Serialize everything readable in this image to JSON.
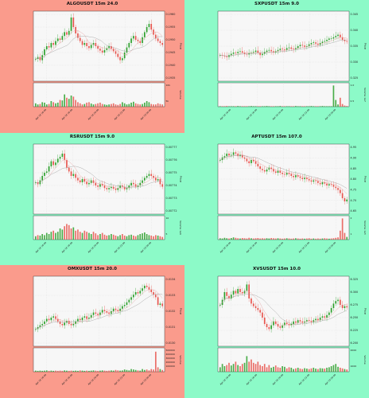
{
  "chart_data": [
    {
      "type": "candlestick",
      "title": "ALGOUSDT 15m 24.0",
      "background": "#fa9b8c",
      "ylabel_price": "Price",
      "ylabel_volume": "Volume",
      "price_ticks": [
        "0.1960",
        "0.1955",
        "0.1950",
        "0.1945",
        "0.1940",
        "0.1935"
      ],
      "volume_ticks": [
        "10k",
        "5k"
      ],
      "x_ticks": [
        "Apr 18 16:00",
        "Apr 18 18:00",
        "Apr 18 20:00",
        "Apr 18 22:00",
        "Apr 19 00:00"
      ],
      "price_shape": [
        0.3,
        0.33,
        0.28,
        0.36,
        0.45,
        0.5,
        0.48,
        0.55,
        0.52,
        0.58,
        0.62,
        0.6,
        0.66,
        0.72,
        0.68,
        0.74,
        0.95,
        0.8,
        0.7,
        0.63,
        0.58,
        0.52,
        0.55,
        0.5,
        0.47,
        0.52,
        0.55,
        0.5,
        0.46,
        0.43,
        0.4,
        0.44,
        0.47,
        0.5,
        0.46,
        0.42,
        0.38,
        0.33,
        0.28,
        0.31,
        0.4,
        0.48,
        0.55,
        0.62,
        0.66,
        0.6,
        0.58,
        0.55,
        0.64,
        0.72,
        0.8,
        0.85,
        0.76,
        0.68,
        0.62,
        0.58,
        0.55,
        0.52
      ],
      "volume_shape": [
        0.15,
        0.1,
        0.12,
        0.2,
        0.18,
        0.1,
        0.12,
        0.25,
        0.2,
        0.15,
        0.18,
        0.3,
        0.28,
        0.55,
        0.4,
        0.35,
        0.5,
        0.45,
        0.3,
        0.2,
        0.15,
        0.1,
        0.12,
        0.18,
        0.2,
        0.14,
        0.1,
        0.12,
        0.15,
        0.18,
        0.12,
        0.1,
        0.08,
        0.1,
        0.12,
        0.15,
        0.1,
        0.08,
        0.12,
        0.2,
        0.15,
        0.1,
        0.12,
        0.18,
        0.22,
        0.15,
        0.12,
        0.1,
        0.12,
        0.18,
        0.25,
        0.2,
        0.12,
        0.1,
        0.1,
        0.15,
        0.12,
        0.1
      ]
    },
    {
      "type": "candlestick",
      "title": "SXPUSDT 15m 9.0",
      "background": "#8cfac8",
      "ylabel_price": "Price",
      "ylabel_volume": "Volume 1e7",
      "price_ticks": [
        "0.345",
        "0.340",
        "0.335",
        "0.330",
        "0.325"
      ],
      "volume_ticks": [
        "1.0",
        "0.5"
      ],
      "x_ticks": [
        "Apr 18 16:00",
        "Apr 18 18:00",
        "Apr 18 20:00",
        "Apr 18 22:00",
        "Apr 19 00:00"
      ],
      "price_shape": [
        0.36,
        0.35,
        0.34,
        0.33,
        0.36,
        0.38,
        0.4,
        0.39,
        0.41,
        0.42,
        0.4,
        0.38,
        0.37,
        0.39,
        0.4,
        0.41,
        0.43,
        0.4,
        0.36,
        0.38,
        0.41,
        0.43,
        0.44,
        0.42,
        0.4,
        0.42,
        0.44,
        0.46,
        0.45,
        0.44,
        0.47,
        0.48,
        0.46,
        0.45,
        0.47,
        0.5,
        0.52,
        0.51,
        0.49,
        0.5,
        0.53,
        0.55,
        0.56,
        0.54,
        0.52,
        0.55,
        0.57,
        0.58,
        0.6,
        0.62,
        0.62,
        0.64,
        0.66,
        0.68,
        0.64,
        0.6,
        0.58,
        0.57
      ],
      "volume_shape": [
        0.02,
        0.02,
        0.02,
        0.03,
        0.02,
        0.02,
        0.02,
        0.02,
        0.03,
        0.02,
        0.02,
        0.02,
        0.02,
        0.02,
        0.03,
        0.02,
        0.02,
        0.02,
        0.02,
        0.02,
        0.02,
        0.03,
        0.02,
        0.02,
        0.02,
        0.02,
        0.02,
        0.03,
        0.02,
        0.02,
        0.02,
        0.02,
        0.02,
        0.02,
        0.03,
        0.02,
        0.02,
        0.02,
        0.02,
        0.02,
        0.02,
        0.03,
        0.02,
        0.02,
        0.02,
        0.02,
        0.03,
        0.02,
        0.02,
        0.02,
        0.02,
        0.95,
        0.3,
        0.1,
        0.4,
        0.12,
        0.05,
        0.03
      ]
    },
    {
      "type": "candlestick",
      "title": "RSRUSDT 15m 9.0",
      "background": "#8cfac8",
      "ylabel_price": "Price",
      "ylabel_volume": "Volume 1e6",
      "price_ticks": [
        "0.00777",
        "0.00776",
        "0.00775",
        "0.00774",
        "0.00773",
        "0.00772"
      ],
      "volume_ticks": [
        "10",
        "5"
      ],
      "x_ticks": [
        "Apr 18 16:00",
        "Apr 18 18:00",
        "Apr 18 20:00",
        "Apr 18 22:00",
        "Apr 19 00:00"
      ],
      "price_shape": [
        0.45,
        0.42,
        0.48,
        0.55,
        0.6,
        0.62,
        0.7,
        0.78,
        0.72,
        0.76,
        0.82,
        0.85,
        0.9,
        0.8,
        0.68,
        0.62,
        0.55,
        0.58,
        0.52,
        0.48,
        0.45,
        0.5,
        0.46,
        0.42,
        0.44,
        0.48,
        0.44,
        0.4,
        0.38,
        0.42,
        0.4,
        0.36,
        0.34,
        0.36,
        0.38,
        0.35,
        0.33,
        0.36,
        0.4,
        0.38,
        0.34,
        0.36,
        0.4,
        0.44,
        0.42,
        0.38,
        0.4,
        0.44,
        0.48,
        0.52,
        0.55,
        0.58,
        0.55,
        0.52,
        0.48,
        0.5,
        0.42,
        0.38
      ],
      "volume_shape": [
        0.15,
        0.2,
        0.18,
        0.25,
        0.2,
        0.3,
        0.25,
        0.35,
        0.4,
        0.3,
        0.35,
        0.5,
        0.45,
        0.6,
        0.7,
        0.65,
        0.5,
        0.55,
        0.4,
        0.45,
        0.35,
        0.3,
        0.4,
        0.35,
        0.3,
        0.25,
        0.35,
        0.28,
        0.2,
        0.25,
        0.3,
        0.22,
        0.18,
        0.2,
        0.25,
        0.22,
        0.18,
        0.15,
        0.2,
        0.25,
        0.18,
        0.15,
        0.2,
        0.22,
        0.18,
        0.15,
        0.2,
        0.25,
        0.28,
        0.32,
        0.25,
        0.2,
        0.18,
        0.15,
        0.2,
        0.18,
        0.15,
        0.12
      ]
    },
    {
      "type": "candlestick",
      "title": "APTUSDT 15m 107.0",
      "background": "#8cfac8",
      "ylabel_price": "Price",
      "ylabel_volume": "Volume 1e5",
      "price_ticks": [
        "4.95",
        "4.90",
        "4.85",
        "4.80",
        "4.75",
        "4.70",
        "4.65"
      ],
      "volume_ticks": [
        "2",
        "1"
      ],
      "x_ticks": [
        "Apr 18 16:00",
        "Apr 18 18:00",
        "Apr 18 20:00",
        "Apr 18 22:00",
        "Apr 19 00:00"
      ],
      "price_shape": [
        0.8,
        0.84,
        0.86,
        0.9,
        0.87,
        0.88,
        0.92,
        0.9,
        0.86,
        0.88,
        0.84,
        0.82,
        0.78,
        0.75,
        0.8,
        0.78,
        0.74,
        0.7,
        0.66,
        0.64,
        0.62,
        0.65,
        0.68,
        0.66,
        0.62,
        0.6,
        0.63,
        0.6,
        0.58,
        0.57,
        0.6,
        0.58,
        0.55,
        0.53,
        0.56,
        0.54,
        0.52,
        0.5,
        0.52,
        0.5,
        0.48,
        0.46,
        0.48,
        0.47,
        0.44,
        0.42,
        0.45,
        0.43,
        0.4,
        0.42,
        0.41,
        0.38,
        0.36,
        0.33,
        0.28,
        0.2,
        0.15,
        0.18
      ],
      "volume_shape": [
        0.06,
        0.05,
        0.08,
        0.06,
        0.05,
        0.07,
        0.1,
        0.08,
        0.06,
        0.05,
        0.07,
        0.06,
        0.05,
        0.08,
        0.06,
        0.05,
        0.06,
        0.07,
        0.05,
        0.06,
        0.05,
        0.06,
        0.05,
        0.07,
        0.06,
        0.05,
        0.06,
        0.05,
        0.04,
        0.05,
        0.06,
        0.05,
        0.04,
        0.05,
        0.06,
        0.05,
        0.04,
        0.05,
        0.04,
        0.05,
        0.06,
        0.04,
        0.05,
        0.04,
        0.05,
        0.04,
        0.05,
        0.06,
        0.05,
        0.04,
        0.05,
        0.06,
        0.08,
        0.1,
        0.4,
        0.95,
        0.3,
        0.12
      ]
    },
    {
      "type": "candlestick",
      "title": "OMXUSDT 15m 20.0",
      "background": "#fa9b8c",
      "ylabel_price": "Price",
      "ylabel_volume": "Volume",
      "price_ticks": [
        "0.0134",
        "0.0133",
        "0.0132",
        "0.0131",
        "0.0130"
      ],
      "volume_ticks": [
        "500000",
        "400000",
        "300000",
        "200000",
        "100000"
      ],
      "x_ticks": [
        "Apr 18 16:00",
        "Apr 18 18:00",
        "Apr 18 20:00",
        "Apr 18 22:00",
        "Apr 19 00:00"
      ],
      "price_shape": [
        0.22,
        0.25,
        0.28,
        0.3,
        0.34,
        0.38,
        0.36,
        0.4,
        0.42,
        0.38,
        0.34,
        0.3,
        0.28,
        0.32,
        0.35,
        0.3,
        0.28,
        0.3,
        0.34,
        0.38,
        0.36,
        0.4,
        0.42,
        0.38,
        0.4,
        0.44,
        0.48,
        0.46,
        0.44,
        0.48,
        0.52,
        0.5,
        0.48,
        0.46,
        0.5,
        0.54,
        0.52,
        0.5,
        0.54,
        0.58,
        0.6,
        0.64,
        0.68,
        0.72,
        0.76,
        0.8,
        0.78,
        0.82,
        0.86,
        0.9,
        0.88,
        0.84,
        0.8,
        0.76,
        0.72,
        0.6,
        0.62,
        0.58
      ],
      "volume_shape": [
        0.05,
        0.04,
        0.05,
        0.04,
        0.05,
        0.06,
        0.04,
        0.05,
        0.04,
        0.05,
        0.04,
        0.05,
        0.04,
        0.06,
        0.05,
        0.04,
        0.05,
        0.04,
        0.05,
        0.04,
        0.06,
        0.05,
        0.04,
        0.05,
        0.04,
        0.05,
        0.06,
        0.05,
        0.04,
        0.05,
        0.06,
        0.05,
        0.04,
        0.05,
        0.06,
        0.05,
        0.08,
        0.06,
        0.05,
        0.06,
        0.1,
        0.08,
        0.06,
        0.12,
        0.1,
        0.08,
        0.06,
        0.05,
        0.12,
        0.08,
        0.1,
        0.06,
        0.12,
        0.1,
        0.9,
        0.2,
        0.12,
        0.08
      ]
    },
    {
      "type": "candlestick",
      "title": "XVSUSDT 15m 10.0",
      "background": "#8cfac8",
      "ylabel_price": "Price",
      "ylabel_volume": "Volume",
      "price_ticks": [
        "6.325",
        "6.300",
        "6.275",
        "6.250",
        "6.225",
        "6.200"
      ],
      "volume_ticks": [
        "2000",
        "1000"
      ],
      "x_ticks": [
        "Apr 18 16:00",
        "Apr 18 18:00",
        "Apr 18 20:00",
        "Apr 18 22:00",
        "Apr 19 00:00"
      ],
      "price_shape": [
        0.6,
        0.68,
        0.8,
        0.74,
        0.7,
        0.76,
        0.82,
        0.78,
        0.85,
        0.8,
        0.78,
        0.82,
        0.92,
        0.7,
        0.62,
        0.58,
        0.55,
        0.52,
        0.48,
        0.4,
        0.3,
        0.25,
        0.22,
        0.28,
        0.34,
        0.3,
        0.26,
        0.24,
        0.28,
        0.32,
        0.3,
        0.28,
        0.3,
        0.34,
        0.32,
        0.36,
        0.34,
        0.32,
        0.34,
        0.36,
        0.35,
        0.33,
        0.36,
        0.38,
        0.36,
        0.4,
        0.42,
        0.4,
        0.44,
        0.48,
        0.55,
        0.62,
        0.66,
        0.68,
        0.6,
        0.55,
        0.58,
        0.56
      ],
      "volume_shape": [
        0.2,
        0.35,
        0.25,
        0.3,
        0.4,
        0.28,
        0.35,
        0.45,
        0.3,
        0.25,
        0.35,
        0.4,
        0.7,
        0.45,
        0.55,
        0.4,
        0.35,
        0.45,
        0.3,
        0.25,
        0.35,
        0.2,
        0.3,
        0.18,
        0.22,
        0.28,
        0.2,
        0.18,
        0.25,
        0.22,
        0.15,
        0.2,
        0.18,
        0.12,
        0.15,
        0.18,
        0.14,
        0.12,
        0.16,
        0.14,
        0.12,
        0.15,
        0.18,
        0.14,
        0.12,
        0.16,
        0.15,
        0.14,
        0.18,
        0.2,
        0.25,
        0.3,
        0.35,
        0.22,
        0.18,
        0.15,
        0.12,
        0.1
      ]
    }
  ]
}
